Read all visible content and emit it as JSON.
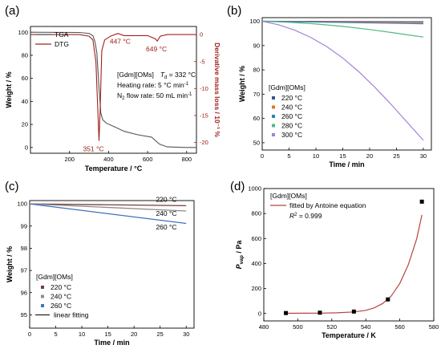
{
  "chart_data": [
    {
      "panel": "(a)",
      "type": "line",
      "xlabel": "Temperature / °C",
      "ylabel": "Weight / %",
      "y2label": "Derivative mass loss / 10⁻¹ %",
      "xlim": [
        0,
        850
      ],
      "ylim": [
        -5,
        105
      ],
      "y2lim": [
        -22,
        1.5
      ],
      "xticks": [
        200,
        400,
        600,
        800
      ],
      "yticks": [
        0,
        20,
        40,
        60,
        80,
        100
      ],
      "y2ticks": [
        0,
        -5,
        -10,
        -15,
        -20
      ],
      "xtick_labels": [
        "200",
        "400",
        "600",
        "800"
      ],
      "ytick_labels": [
        "0",
        "20",
        "40",
        "60",
        "80",
        "100"
      ],
      "y2tick_labels": [
        "0",
        "-5",
        "-10",
        "-15",
        "-20"
      ],
      "legend": [
        "TGA",
        "DTG"
      ],
      "legend_position": "top-left",
      "colors": {
        "TGA": "#555555",
        "DTG": "#a0201c"
      },
      "series": [
        {
          "name": "TGA",
          "axis": "left",
          "points": [
            [
              0,
              100
            ],
            [
              250,
              99.8
            ],
            [
              300,
              99
            ],
            [
              320,
              97
            ],
            [
              330,
              92
            ],
            [
              340,
              82
            ],
            [
              350,
              55
            ],
            [
              360,
              30
            ],
            [
              370,
              24
            ],
            [
              390,
              21
            ],
            [
              430,
              18
            ],
            [
              480,
              14
            ],
            [
              550,
              11
            ],
            [
              620,
              9
            ],
            [
              660,
              3
            ],
            [
              700,
              0.5
            ],
            [
              800,
              0
            ],
            [
              850,
              0
            ]
          ]
        },
        {
          "name": "DTG",
          "axis": "right",
          "points": [
            [
              0,
              0
            ],
            [
              250,
              0
            ],
            [
              300,
              -0.3
            ],
            [
              320,
              -1
            ],
            [
              335,
              -5
            ],
            [
              345,
              -14
            ],
            [
              351,
              -19.7
            ],
            [
              357,
              -14
            ],
            [
              365,
              -3
            ],
            [
              380,
              -1
            ],
            [
              410,
              -0.3
            ],
            [
              447,
              0.2
            ],
            [
              480,
              -0.2
            ],
            [
              600,
              -0.2
            ],
            [
              640,
              -0.8
            ],
            [
              649,
              -1.2
            ],
            [
              665,
              -0.3
            ],
            [
              700,
              0
            ],
            [
              850,
              0
            ]
          ]
        }
      ],
      "annotations": [
        {
          "text": "447 °C",
          "x": 447,
          "y2": 0.2
        },
        {
          "text": "649 °C",
          "x": 649,
          "y2": -1.2
        },
        {
          "text": "351 °C",
          "x": 351,
          "y2": -19.7
        }
      ],
      "info": {
        "compound": "[Gdm][OMs]",
        "td_label": "T",
        "td_sub": "d",
        "td_value": " = 332 °C",
        "heating": "Heating rate: 5 °C min",
        "heating_sup": "-1",
        "flow_pre": "N",
        "flow_sub": "2",
        "flow": " flow rate: 50 mL min",
        "flow_sup": "-1"
      }
    },
    {
      "panel": "(b)",
      "type": "line",
      "xlabel": "Time / min",
      "ylabel": "Weight / %",
      "xlim": [
        0,
        31.5
      ],
      "ylim": [
        47,
        101.5
      ],
      "xticks": [
        0,
        5,
        10,
        15,
        20,
        25,
        30
      ],
      "yticks": [
        50,
        60,
        70,
        80,
        90,
        100
      ],
      "xtick_labels": [
        "0",
        "5",
        "10",
        "15",
        "20",
        "25",
        "30"
      ],
      "ytick_labels": [
        "50",
        "60",
        "70",
        "80",
        "90",
        "100"
      ],
      "legend_title": "[Gdm][OMs]",
      "legend_position": "bottom-left",
      "series": [
        {
          "name": "220 °C",
          "color": "#3f4f8f",
          "points": [
            [
              0,
              100
            ],
            [
              30,
              99.8
            ]
          ]
        },
        {
          "name": "240 °C",
          "color": "#e3722a",
          "points": [
            [
              0,
              100
            ],
            [
              30,
              99.5
            ]
          ]
        },
        {
          "name": "260 °C",
          "color": "#2f7fbf",
          "points": [
            [
              0,
              100
            ],
            [
              30,
              99.0
            ]
          ]
        },
        {
          "name": "280 °C",
          "color": "#50b880",
          "points": [
            [
              0,
              100
            ],
            [
              5,
              99.6
            ],
            [
              10,
              98.9
            ],
            [
              15,
              97.9
            ],
            [
              20,
              96.6
            ],
            [
              25,
              95.1
            ],
            [
              30,
              93.5
            ]
          ]
        },
        {
          "name": "300 °C",
          "color": "#a57fd8",
          "points": [
            [
              0,
              100
            ],
            [
              3,
              98.6
            ],
            [
              6,
              96.4
            ],
            [
              9,
              93.4
            ],
            [
              12,
              89.6
            ],
            [
              15,
              84.9
            ],
            [
              18,
              79.2
            ],
            [
              21,
              72.8
            ],
            [
              24,
              65.8
            ],
            [
              27,
              58.4
            ],
            [
              30,
              51
            ]
          ]
        }
      ]
    },
    {
      "panel": "(c)",
      "type": "line",
      "xlabel": "Time / min",
      "ylabel": "Weight / %",
      "xlim": [
        0,
        31.5
      ],
      "ylim": [
        94.4,
        100.15
      ],
      "xticks": [
        0,
        5,
        10,
        15,
        20,
        25,
        30
      ],
      "yticks": [
        95,
        96,
        97,
        98,
        99,
        100
      ],
      "xtick_labels": [
        "0",
        "5",
        "10",
        "15",
        "20",
        "25",
        "30"
      ],
      "ytick_labels": [
        "95",
        "96",
        "97",
        "98",
        "99",
        "100"
      ],
      "legend_title": "[Gdm][OMs]",
      "legend_position": "bottom-left",
      "fit_label": "linear fitting",
      "series": [
        {
          "name": "220 °C",
          "color": "#7a3c3c",
          "points": [
            [
              0,
              100
            ],
            [
              30,
              99.92
            ]
          ]
        },
        {
          "name": "240 °C",
          "color": "#8c8c8c",
          "points": [
            [
              0,
              100
            ],
            [
              30,
              99.68
            ]
          ]
        },
        {
          "name": "260 °C",
          "color": "#3f72c0",
          "points": [
            [
              0,
              100
            ],
            [
              30,
              99.12
            ]
          ]
        }
      ],
      "annotations": [
        {
          "text": "220 °C",
          "x": 26.2,
          "y": 100.1
        },
        {
          "text": "240 °C",
          "x": 26.2,
          "y": 99.46
        },
        {
          "text": "260 °C",
          "x": 26.2,
          "y": 98.85
        }
      ]
    },
    {
      "panel": "(d)",
      "type": "scatter",
      "xlabel": "Temperature / K",
      "ylabel_main": "P",
      "ylabel_sub": "vap",
      "ylabel_rest": " / Pa",
      "xlim": [
        480,
        580
      ],
      "ylim": [
        -60,
        1000
      ],
      "xticks": [
        480,
        500,
        520,
        540,
        560,
        580
      ],
      "yticks": [
        0,
        200,
        400,
        600,
        800,
        1000
      ],
      "xtick_labels": [
        "480",
        "500",
        "520",
        "540",
        "560",
        "580"
      ],
      "ytick_labels": [
        "0",
        "200",
        "400",
        "600",
        "800",
        "1000"
      ],
      "legend_title": "[Gdm][OMs]",
      "legend_position": "top-left",
      "fit_label": "fitted by Antoine equation",
      "r2_main": "R",
      "r2_sup": "2",
      "r2_rest": " = 0.999",
      "fit_color": "#b5463c",
      "points": [
        [
          493,
          3
        ],
        [
          513,
          6
        ],
        [
          533,
          15
        ],
        [
          553,
          112
        ],
        [
          573,
          895
        ]
      ],
      "fit_curve": [
        [
          493,
          1
        ],
        [
          503,
          1.5
        ],
        [
          513,
          2.5
        ],
        [
          523,
          5
        ],
        [
          533,
          12
        ],
        [
          540,
          25
        ],
        [
          545,
          45
        ],
        [
          550,
          80
        ],
        [
          555,
          140
        ],
        [
          560,
          240
        ],
        [
          565,
          390
        ],
        [
          570,
          600
        ],
        [
          573,
          790
        ]
      ]
    }
  ]
}
